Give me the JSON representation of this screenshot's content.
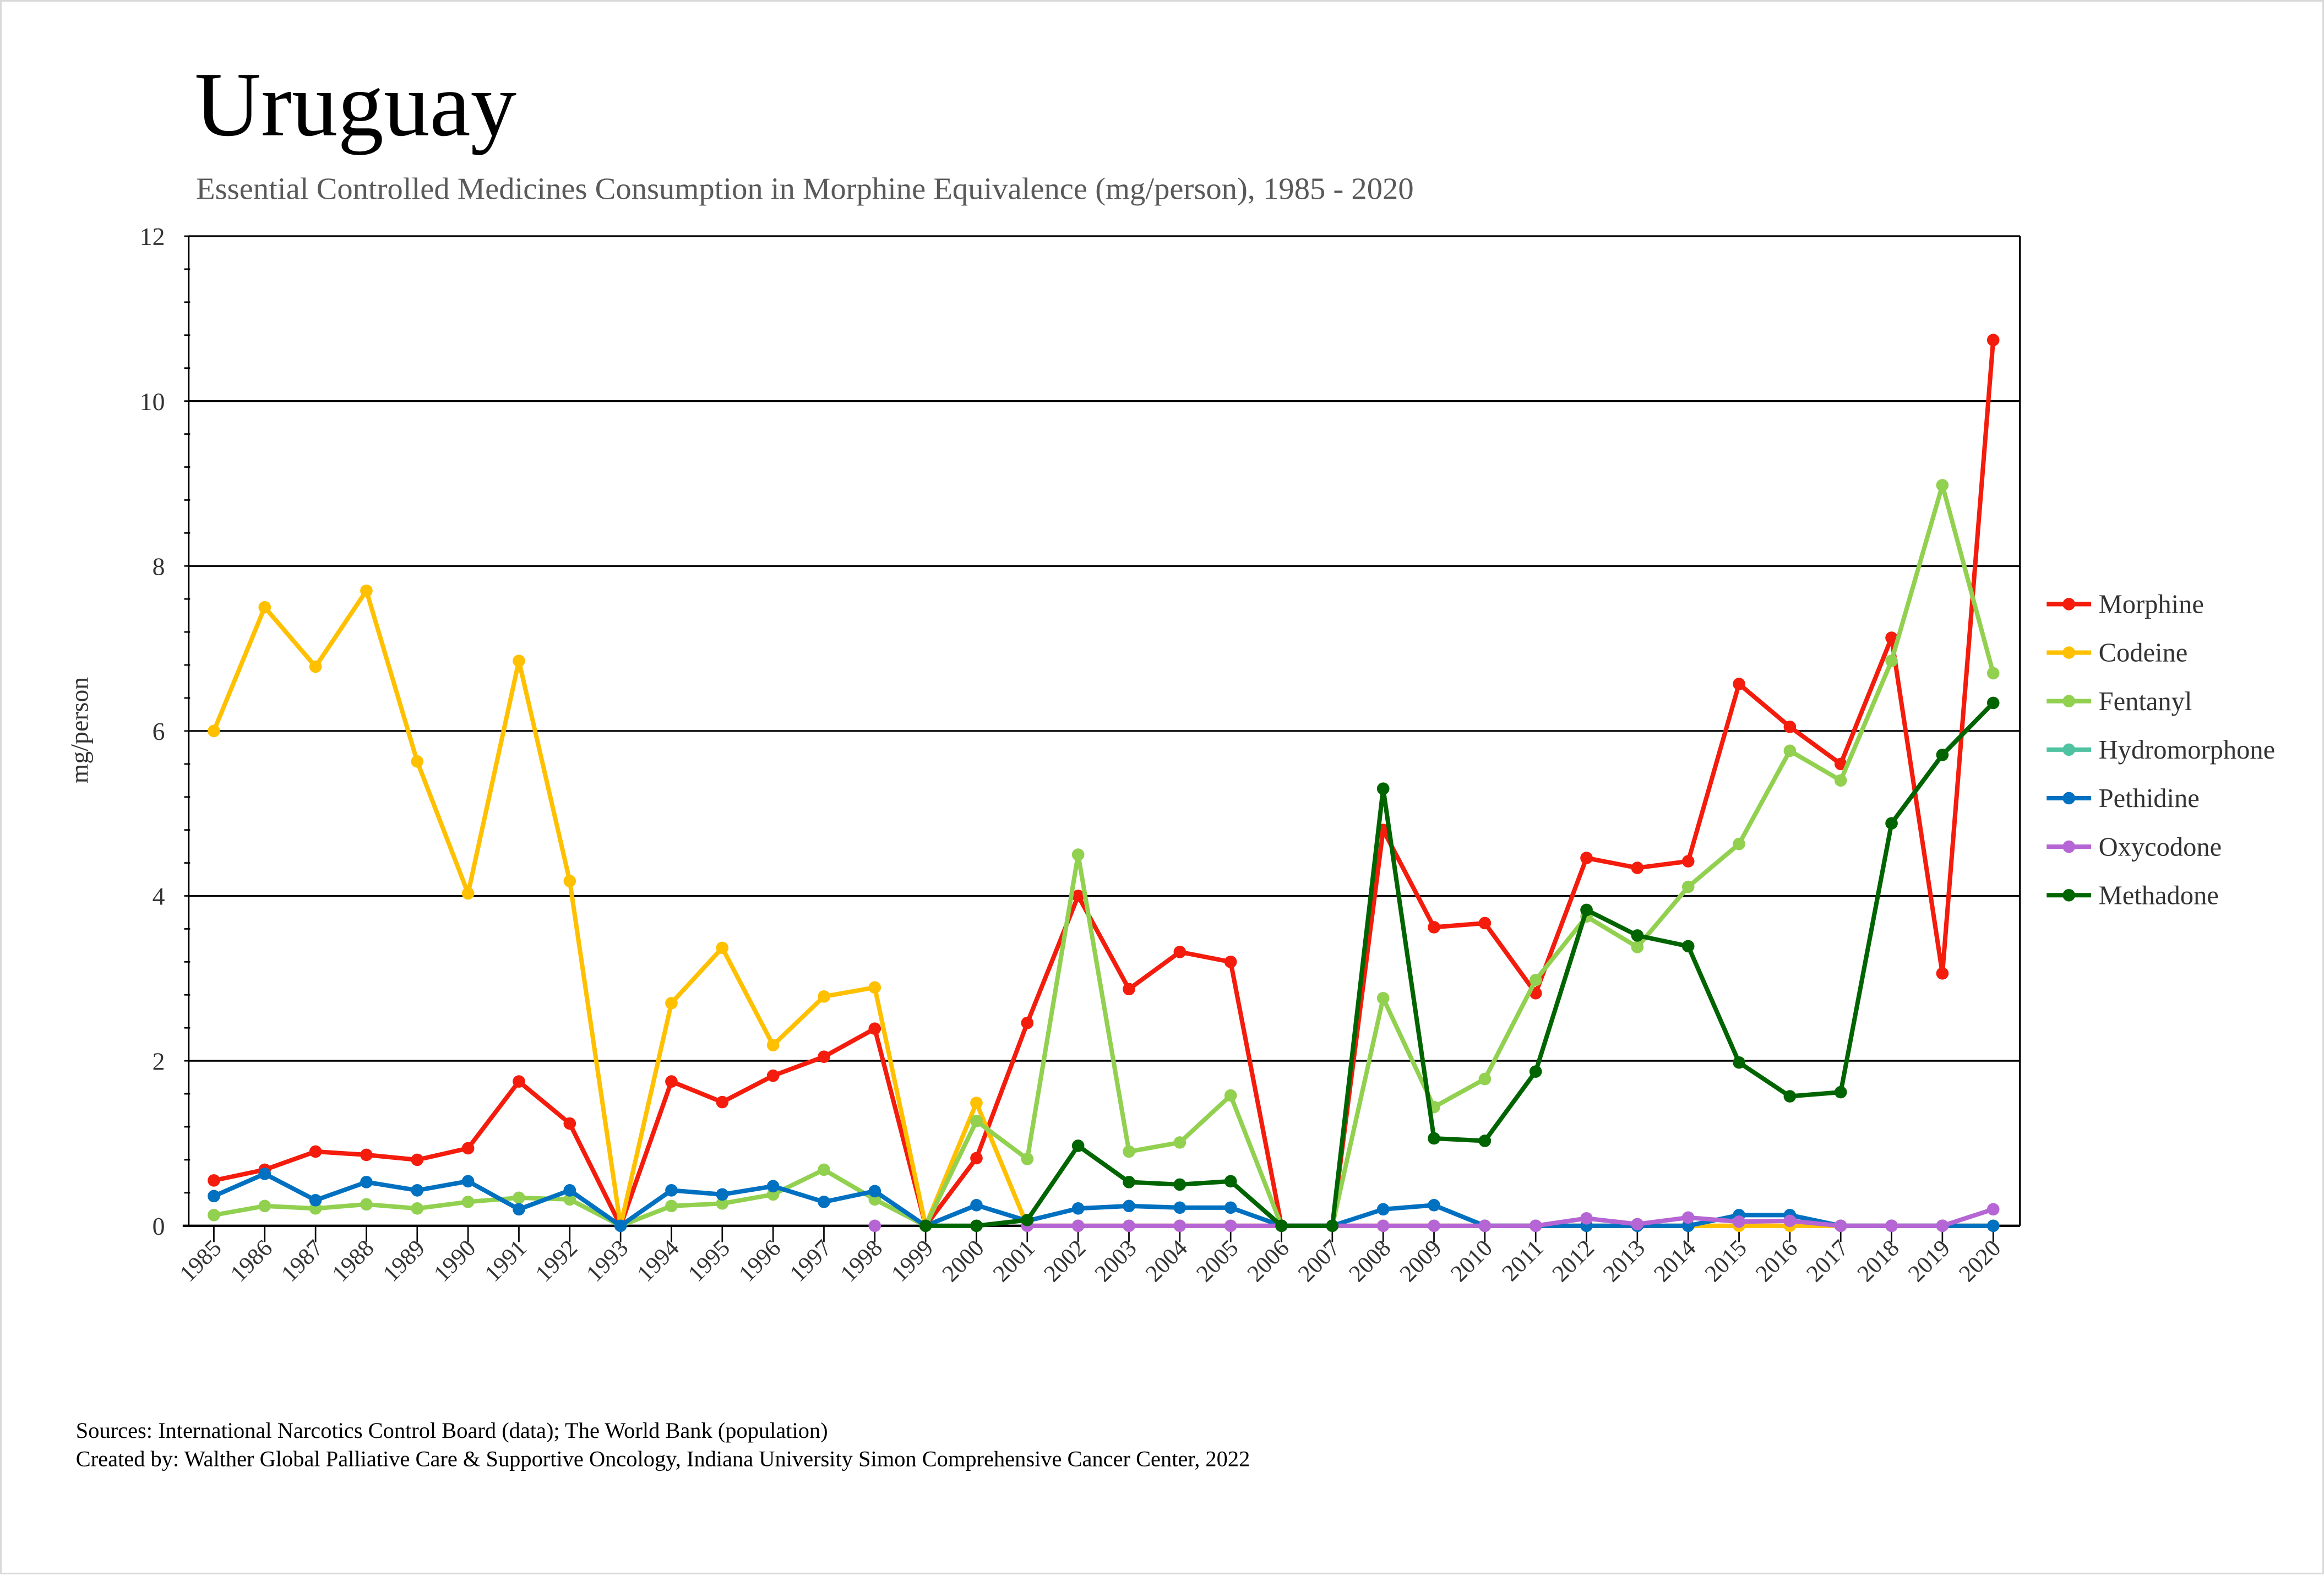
{
  "chart_data": {
    "type": "line",
    "title": "Uruguay",
    "subtitle": "Essential Controlled Medicines Consumption in Morphine Equivalence (mg/person), 1985 - 2020",
    "xlabel": "",
    "ylabel": "mg/person",
    "ylim": [
      0,
      12
    ],
    "yticks": [
      0,
      2,
      4,
      6,
      8,
      10,
      12
    ],
    "grid": true,
    "legend_position": "right",
    "x": [
      1985,
      1986,
      1987,
      1988,
      1989,
      1990,
      1991,
      1992,
      1993,
      1994,
      1995,
      1996,
      1997,
      1998,
      1999,
      2000,
      2001,
      2002,
      2003,
      2004,
      2005,
      2006,
      2007,
      2008,
      2009,
      2010,
      2011,
      2012,
      2013,
      2014,
      2015,
      2016,
      2017,
      2018,
      2019,
      2020
    ],
    "series": [
      {
        "name": "Morphine",
        "color": "#f41c0c",
        "values": [
          0.55,
          0.68,
          0.9,
          0.86,
          0.8,
          0.94,
          1.75,
          1.24,
          0,
          1.75,
          1.5,
          1.82,
          2.05,
          2.39,
          0,
          0.82,
          2.46,
          4.0,
          2.87,
          3.32,
          3.2,
          0,
          0,
          4.8,
          3.62,
          3.67,
          2.82,
          4.46,
          4.34,
          4.42,
          6.57,
          6.05,
          5.6,
          7.13,
          3.06,
          10.74
        ]
      },
      {
        "name": "Codeine",
        "color": "#ffc000",
        "values": [
          6.0,
          7.5,
          6.78,
          7.7,
          5.63,
          4.03,
          6.85,
          4.18,
          0,
          2.7,
          3.37,
          2.19,
          2.78,
          2.89,
          0,
          1.49,
          0,
          0,
          0,
          0,
          0,
          0,
          0,
          0,
          0,
          0,
          0,
          0,
          0,
          0,
          0,
          0,
          0,
          0,
          0,
          0
        ]
      },
      {
        "name": "Fentanyl",
        "color": "#92d050",
        "values": [
          0.13,
          0.24,
          0.21,
          0.26,
          0.21,
          0.29,
          0.34,
          0.32,
          0,
          0.24,
          0.27,
          0.38,
          0.68,
          0.32,
          0,
          1.27,
          0.81,
          4.5,
          0.9,
          1.01,
          1.58,
          0,
          0,
          2.76,
          1.44,
          1.78,
          2.98,
          3.75,
          3.38,
          4.11,
          4.63,
          5.76,
          5.4,
          6.85,
          8.98,
          6.7
        ]
      },
      {
        "name": "Hydromorphone",
        "color": "#4fc3a1",
        "values": [
          null,
          null,
          null,
          null,
          null,
          null,
          null,
          null,
          null,
          null,
          null,
          null,
          null,
          null,
          null,
          null,
          null,
          null,
          null,
          null,
          null,
          null,
          null,
          null,
          null,
          null,
          null,
          null,
          null,
          null,
          null,
          null,
          null,
          null,
          null,
          null
        ]
      },
      {
        "name": "Pethidine",
        "color": "#0070c0",
        "values": [
          0.36,
          0.63,
          0.31,
          0.53,
          0.43,
          0.54,
          0.2,
          0.43,
          0,
          0.43,
          0.38,
          0.48,
          0.29,
          0.42,
          0,
          0.25,
          0.06,
          0.21,
          0.24,
          0.22,
          0.22,
          0,
          0,
          0.2,
          0.25,
          0,
          0,
          0,
          0,
          0,
          0.13,
          0.13,
          0,
          0,
          0,
          0
        ]
      },
      {
        "name": "Oxycodone",
        "color": "#b565d4",
        "values": [
          null,
          null,
          null,
          null,
          null,
          null,
          null,
          null,
          null,
          null,
          null,
          null,
          null,
          0,
          null,
          null,
          0,
          0,
          0,
          0,
          0,
          0,
          0,
          0,
          0,
          0,
          0,
          0.09,
          0.02,
          0.1,
          0.05,
          0.06,
          0,
          0,
          0,
          0.2
        ]
      },
      {
        "name": "Methadone",
        "color": "#006400",
        "values": [
          null,
          null,
          null,
          null,
          null,
          null,
          null,
          null,
          null,
          null,
          null,
          null,
          null,
          null,
          0,
          0,
          0.07,
          0.97,
          0.53,
          0.5,
          0.54,
          0,
          0,
          5.3,
          1.06,
          1.03,
          1.87,
          3.83,
          3.52,
          3.39,
          1.98,
          1.57,
          1.62,
          4.88,
          5.71,
          6.34
        ]
      }
    ]
  },
  "footer": {
    "sources": "Sources: International Narcotics Control Board (data); The World Bank (population)",
    "created_by": "Created by: Walther Global Palliative Care & Supportive Oncology, Indiana University Simon Comprehensive Cancer Center, 2022"
  }
}
